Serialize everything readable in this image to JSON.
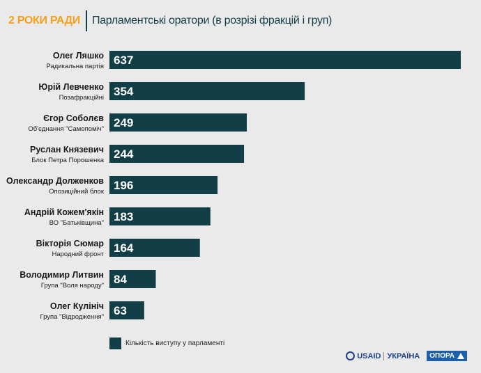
{
  "header": {
    "brand": "2 РОКИ РАДИ",
    "title": "Парламентські оратори (в розрізі фракцій і груп)"
  },
  "chart_data": {
    "type": "bar",
    "orientation": "horizontal",
    "categories": [
      "Олег Ляшко",
      "Юрій Левченко",
      "Єгор Соболєв",
      "Руслан Князевич",
      "Олександр Долженков",
      "Андрій Кожем'якін",
      "Вікторія Сюмар",
      "Володимир Литвин",
      "Олег Кулініч"
    ],
    "subcategories": [
      "Радикальна партія",
      "Позафракційні",
      "Об'єднання \"Самопоміч\"",
      "Блок Петра Порошенка",
      "Опозиційний блок",
      "ВО \"Батьківщина\"",
      "Народний фронт",
      "Група \"Воля народу\"",
      "Група \"Відродження\""
    ],
    "series": [
      {
        "name": "Кількість виступу у парламенті",
        "values": [
          637,
          354,
          249,
          244,
          196,
          183,
          164,
          84,
          63
        ]
      }
    ],
    "xlim": [
      0,
      637
    ],
    "grid": false,
    "legend_position": "bottom-left",
    "bar_color": "#123e47",
    "label_color": "#ffffff"
  },
  "legend": {
    "label": "Кількість виступу у парламенті"
  },
  "footer": {
    "usaid_name": "USAID",
    "usaid_country": "УКРАЇНА",
    "opora_name": "ОПОРА"
  },
  "colors": {
    "accent": "#f2a21c",
    "primary": "#123e47",
    "background": "#eaeaea"
  }
}
